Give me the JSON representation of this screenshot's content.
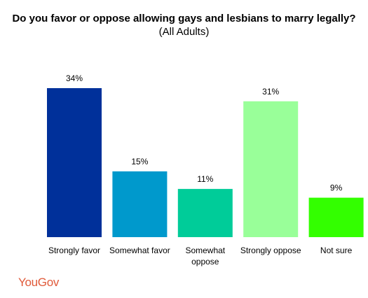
{
  "chart_data": {
    "type": "bar",
    "title": "Do you favor or oppose allowing gays and lesbians to marry legally?",
    "subtitle": "(All Adults)",
    "categories": [
      "Strongly favor",
      "Somewhat favor",
      "Somewhat oppose",
      "Strongly oppose",
      "Not sure"
    ],
    "category_lines": [
      [
        "Strongly favor"
      ],
      [
        "Somewhat favor"
      ],
      [
        "Somewhat",
        "oppose"
      ],
      [
        "Strongly oppose"
      ],
      [
        "Not sure"
      ]
    ],
    "values": [
      34,
      15,
      11,
      31,
      9
    ],
    "data_labels": [
      "34%",
      "15%",
      "11%",
      "31%",
      "9%"
    ],
    "colors": [
      "#00309a",
      "#0099cc",
      "#00cc99",
      "#99ff99",
      "#33ff00"
    ],
    "ylim": [
      0,
      34
    ],
    "grid": false,
    "legend": "none"
  },
  "logo": {
    "text": "YouGov"
  }
}
